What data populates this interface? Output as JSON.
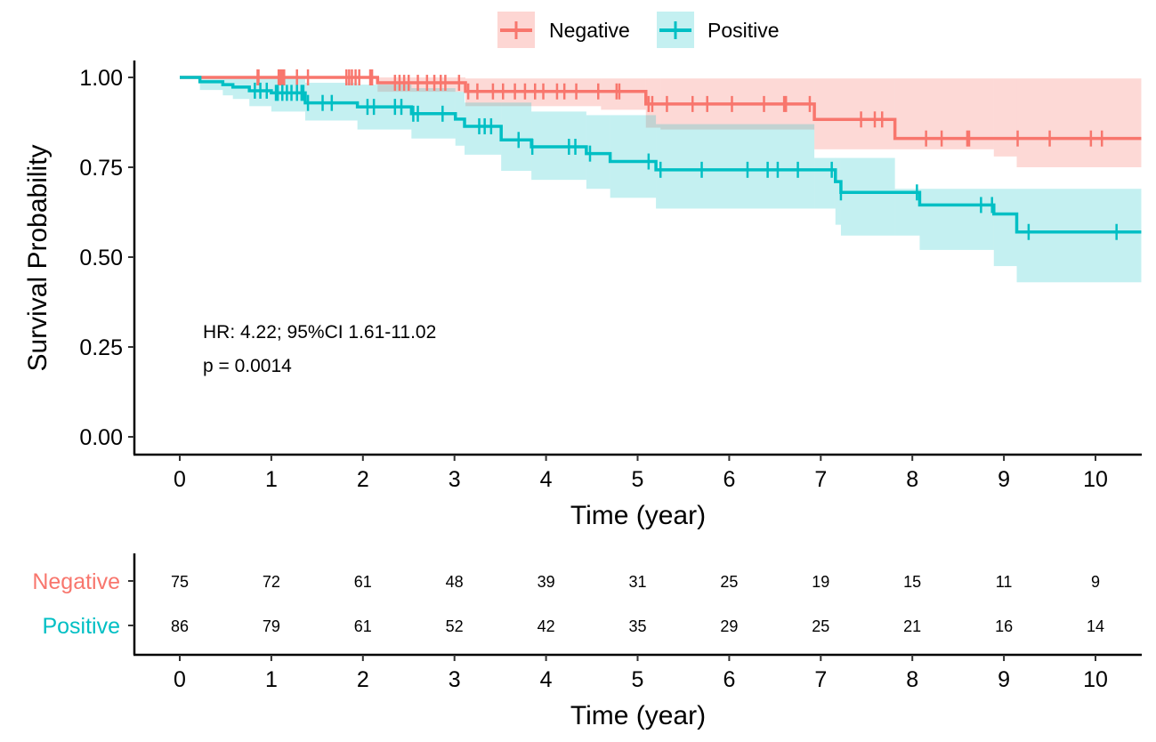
{
  "chart_data": {
    "type": "line",
    "subtype": "kaplan-meier",
    "title": "",
    "xlabel": "Time (year)",
    "ylabel": "Survival Probability",
    "xlim": [
      0,
      10.5
    ],
    "ylim": [
      0,
      1
    ],
    "x_ticks": [
      0,
      1,
      2,
      3,
      4,
      5,
      6,
      7,
      8,
      9,
      10
    ],
    "x_tick_labels": [
      "0",
      "1",
      "2",
      "3",
      "4",
      "5",
      "6",
      "7",
      "8",
      "9",
      "10"
    ],
    "y_ticks": [
      0,
      0.25,
      0.5,
      0.75,
      1.0
    ],
    "y_tick_labels": [
      "0.00",
      "0.25",
      "0.50",
      "0.75",
      "1.00"
    ],
    "grid": false,
    "legend": {
      "placement": "top",
      "entries": [
        {
          "label": "Negative",
          "color": "#F8766D"
        },
        {
          "label": "Positive",
          "color": "#00BFC4"
        }
      ]
    },
    "annotations": [
      "HR: 4.22; 95%CI 1.61-11.02",
      "p = 0.0014"
    ],
    "series": [
      {
        "name": "Negative",
        "color": "#F8766D",
        "ci_color": "#F8766D",
        "steps": [
          [
            0,
            1.0
          ],
          [
            2.16,
            0.985
          ],
          [
            3.12,
            0.961
          ],
          [
            5.09,
            0.926
          ],
          [
            6.93,
            0.883
          ],
          [
            7.81,
            0.83
          ]
        ],
        "end_x": 10.5,
        "ci_upper": [
          [
            0,
            1.0
          ],
          [
            3.12,
            0.997
          ],
          [
            7.81,
            0.997
          ]
        ],
        "ci_lower": [
          [
            0,
            1.0
          ],
          [
            0.23,
            0.998
          ],
          [
            2.16,
            0.96
          ],
          [
            3.12,
            0.92
          ],
          [
            4.6,
            0.91
          ],
          [
            5.09,
            0.86
          ],
          [
            5.25,
            0.855
          ],
          [
            6.93,
            0.8
          ],
          [
            7.81,
            0.8
          ],
          [
            8.89,
            0.78
          ],
          [
            9.14,
            0.75
          ]
        ],
        "censor_times": [
          0.85,
          0.86,
          1.08,
          1.1,
          1.12,
          1.14,
          1.28,
          1.4,
          1.82,
          1.85,
          1.88,
          1.92,
          1.96,
          2.08,
          2.1,
          2.35,
          2.4,
          2.45,
          2.5,
          2.6,
          2.7,
          2.78,
          2.85,
          2.9,
          3.05,
          3.15,
          3.25,
          3.42,
          3.53,
          3.66,
          3.77,
          3.88,
          3.97,
          4.12,
          4.2,
          4.33,
          4.57,
          4.77,
          4.8,
          5.12,
          5.16,
          5.32,
          5.6,
          5.76,
          6.03,
          6.38,
          6.6,
          6.62,
          6.88,
          7.44,
          7.59,
          7.67,
          8.15,
          8.32,
          8.6,
          8.62,
          9.15,
          9.5,
          9.95,
          10.07
        ]
      },
      {
        "name": "Positive",
        "color": "#00BFC4",
        "ci_color": "#00BFC4",
        "steps": [
          [
            0,
            1.0
          ],
          [
            0.22,
            0.988
          ],
          [
            0.47,
            0.98
          ],
          [
            0.58,
            0.973
          ],
          [
            0.76,
            0.963
          ],
          [
            1.0,
            0.957
          ],
          [
            1.37,
            0.929
          ],
          [
            1.94,
            0.918
          ],
          [
            2.53,
            0.899
          ],
          [
            3.01,
            0.884
          ],
          [
            3.11,
            0.864
          ],
          [
            3.51,
            0.826
          ],
          [
            3.84,
            0.807
          ],
          [
            4.44,
            0.788
          ],
          [
            4.7,
            0.766
          ],
          [
            5.2,
            0.743
          ],
          [
            7.16,
            0.71
          ],
          [
            7.22,
            0.68
          ],
          [
            8.08,
            0.645
          ],
          [
            8.89,
            0.62
          ],
          [
            9.14,
            0.57
          ]
        ],
        "end_x": 10.5,
        "ci_upper": [
          [
            0,
            1.0
          ],
          [
            0.22,
            1.0
          ],
          [
            1.37,
            0.985
          ],
          [
            1.94,
            0.98
          ],
          [
            2.53,
            0.97
          ],
          [
            3.01,
            0.96
          ],
          [
            3.11,
            0.93
          ],
          [
            3.84,
            0.905
          ],
          [
            4.44,
            0.895
          ],
          [
            5.2,
            0.87
          ],
          [
            6.93,
            0.776
          ],
          [
            7.81,
            0.69
          ]
        ],
        "ci_lower": [
          [
            0,
            1.0
          ],
          [
            0.22,
            0.965
          ],
          [
            0.47,
            0.95
          ],
          [
            0.58,
            0.94
          ],
          [
            0.76,
            0.92
          ],
          [
            1.0,
            0.905
          ],
          [
            1.37,
            0.88
          ],
          [
            1.94,
            0.855
          ],
          [
            2.53,
            0.83
          ],
          [
            3.01,
            0.81
          ],
          [
            3.11,
            0.785
          ],
          [
            3.51,
            0.74
          ],
          [
            3.84,
            0.715
          ],
          [
            4.44,
            0.69
          ],
          [
            4.7,
            0.665
          ],
          [
            5.2,
            0.635
          ],
          [
            7.16,
            0.59
          ],
          [
            7.22,
            0.56
          ],
          [
            8.08,
            0.52
          ],
          [
            8.89,
            0.475
          ],
          [
            9.14,
            0.43
          ]
        ],
        "censor_times": [
          0.82,
          0.88,
          0.95,
          1.05,
          1.07,
          1.12,
          1.17,
          1.22,
          1.28,
          1.33,
          1.35,
          1.4,
          1.56,
          1.66,
          2.05,
          2.12,
          2.35,
          2.42,
          2.55,
          2.6,
          2.87,
          3.27,
          3.33,
          3.4,
          3.7,
          3.85,
          4.25,
          4.32,
          4.48,
          5.12,
          5.25,
          5.7,
          6.2,
          6.42,
          6.53,
          6.75,
          7.12,
          7.22,
          8.05,
          8.75,
          8.87,
          9.27,
          10.23
        ]
      }
    ],
    "risk_table": {
      "title": "",
      "xlabel": "Time (year)",
      "times": [
        0,
        1,
        2,
        3,
        4,
        5,
        6,
        7,
        8,
        9,
        10
      ],
      "rows": [
        {
          "name": "Negative",
          "color": "#F8766D",
          "values": [
            75,
            72,
            61,
            48,
            39,
            31,
            25,
            19,
            15,
            11,
            9
          ]
        },
        {
          "name": "Positive",
          "color": "#00BFC4",
          "values": [
            86,
            79,
            61,
            52,
            42,
            35,
            29,
            25,
            21,
            16,
            14
          ]
        }
      ]
    }
  }
}
